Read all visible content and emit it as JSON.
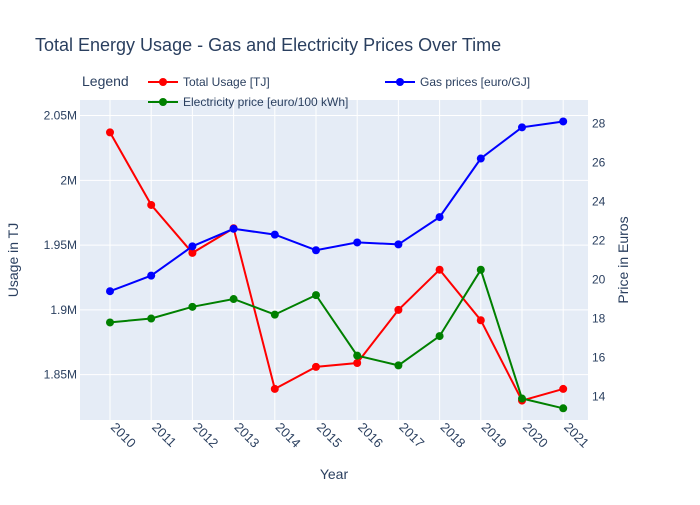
{
  "chart_data": {
    "type": "line",
    "title": "Total Energy Usage - Gas and Electricity Prices Over Time",
    "xlabel": "Year",
    "ylabel_left": "Usage in TJ",
    "ylabel_right": "Price in Euros",
    "legend_title": "Legend",
    "legend_placement": "top",
    "grid": true,
    "x": [
      "2010",
      "2011",
      "2012",
      "2013",
      "2014",
      "2015",
      "2016",
      "2017",
      "2018",
      "2019",
      "2020",
      "2021"
    ],
    "y_left": {
      "range": [
        1815000,
        2062000
      ],
      "ticks": [
        1850000,
        1900000,
        1950000,
        2000000,
        2050000
      ],
      "tick_labels": [
        "1.85M",
        "1.9M",
        "1.95M",
        "2M",
        "2.05M"
      ]
    },
    "y_right": {
      "range": [
        12.8,
        29.2
      ],
      "ticks": [
        14,
        16,
        18,
        20,
        22,
        24,
        26,
        28
      ],
      "tick_labels": [
        "14",
        "16",
        "18",
        "20",
        "22",
        "24",
        "26",
        "28"
      ]
    },
    "series": [
      {
        "name": "Total Usage [TJ]",
        "axis": "left",
        "color": "#ff0000",
        "values": [
          2037000,
          1981000,
          1944000,
          1963000,
          1839000,
          1856000,
          1859000,
          1900000,
          1931000,
          1892000,
          1830000,
          1839000
        ]
      },
      {
        "name": "Electricity price [euro/100 kWh]",
        "axis": "right",
        "color": "#008000",
        "values": [
          17.8,
          18.0,
          18.6,
          19.0,
          18.2,
          19.2,
          16.1,
          15.6,
          17.1,
          20.5,
          13.9,
          13.4
        ]
      },
      {
        "name": "Gas prices [euro/GJ]",
        "axis": "right",
        "color": "#0000ff",
        "values": [
          19.4,
          20.2,
          21.7,
          22.6,
          22.3,
          21.5,
          21.9,
          21.8,
          23.2,
          26.2,
          27.8,
          28.1
        ]
      }
    ]
  }
}
